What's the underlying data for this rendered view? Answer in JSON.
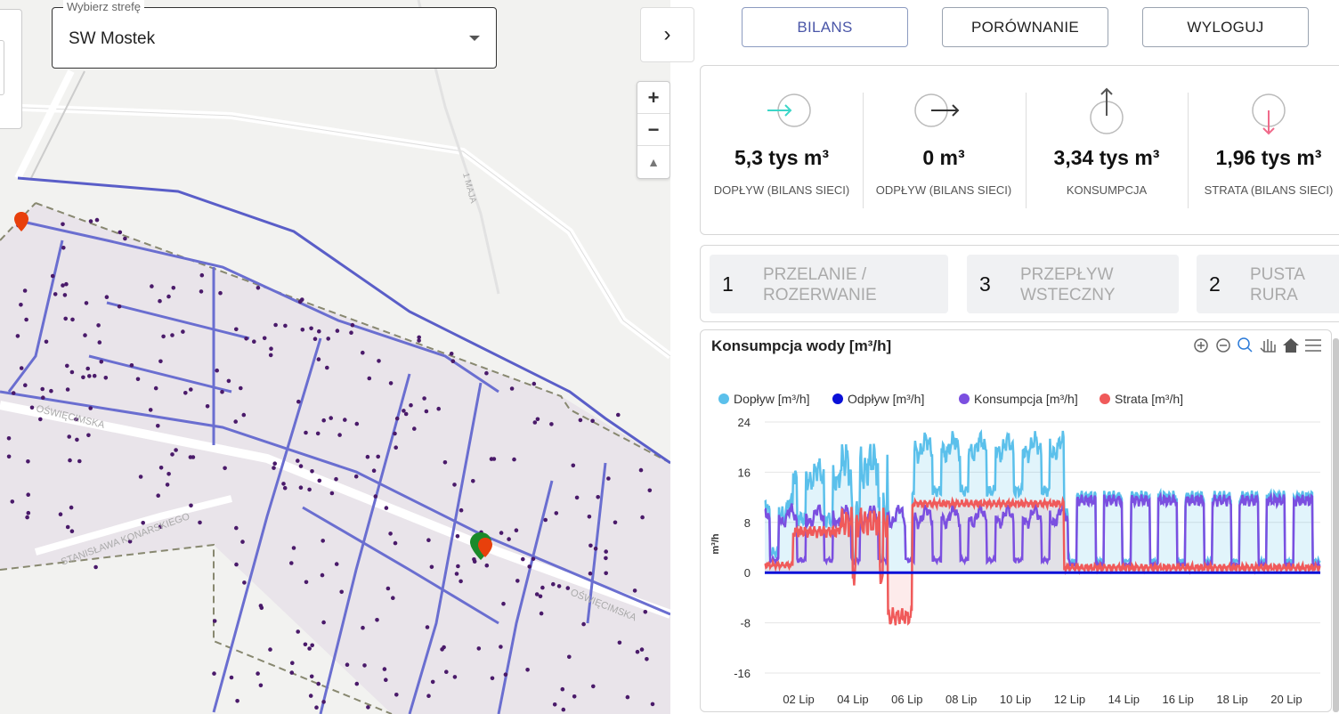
{
  "zone_select": {
    "label": "Wybierz strefę",
    "value": "SW Mostek"
  },
  "map": {
    "streets": [
      "OŚWIĘCIMSKA",
      "OŚWIĘCIMSKA",
      "STANISŁAWA KONARSKIEGO",
      "1 MAJA"
    ],
    "zoom_in": "+",
    "zoom_out": "−"
  },
  "nav": {
    "bilans": "BILANS",
    "porownanie": "PORÓWNANIE",
    "wyloguj": "WYLOGUJ"
  },
  "stats": [
    {
      "value": "5,3 tys m³",
      "label": "DOPŁYW (BILANS SIECI)",
      "icon": "inflow-icon",
      "color": "#3dd6c8"
    },
    {
      "value": "0 m³",
      "label": "ODPŁYW (BILANS SIECI)",
      "icon": "outflow-icon",
      "color": "#333333"
    },
    {
      "value": "3,34 tys m³",
      "label": "KONSUMPCJA",
      "icon": "consumption-icon",
      "color": "#666666"
    },
    {
      "value": "1,96 tys m³",
      "label": "STRATA (BILANS SIECI)",
      "icon": "loss-icon",
      "color": "#f06a8a"
    }
  ],
  "alerts": [
    {
      "count": "1",
      "line1": "PRZELANIE /",
      "line2": "ROZERWANIE"
    },
    {
      "count": "3",
      "line1": "PRZEPŁYW",
      "line2": "WSTECZNY"
    },
    {
      "count": "2",
      "line1": "PUSTA",
      "line2": "RURA"
    }
  ],
  "chart_data": {
    "type": "line",
    "title": "Konsumpcja wody [m³/h]",
    "ylabel": "m³/h",
    "ylim": [
      -16,
      24
    ],
    "yticks": [
      24,
      16,
      8,
      0,
      -8,
      -16
    ],
    "xticks": [
      "02 Lip",
      "04 Lip",
      "06 Lip",
      "08 Lip",
      "10 Lip",
      "12 Lip",
      "14 Lip",
      "16 Lip",
      "18 Lip",
      "20 Lip"
    ],
    "series": [
      {
        "name": "Dopływ [m³/h]",
        "color": "#5bc0eb"
      },
      {
        "name": "Odpływ [m³/h]",
        "color": "#0a10d8"
      },
      {
        "name": "Konsumpcja [m³/h]",
        "color": "#7b4fe0"
      },
      {
        "name": "Strata [m³/h]",
        "color": "#f05a5a"
      }
    ]
  }
}
